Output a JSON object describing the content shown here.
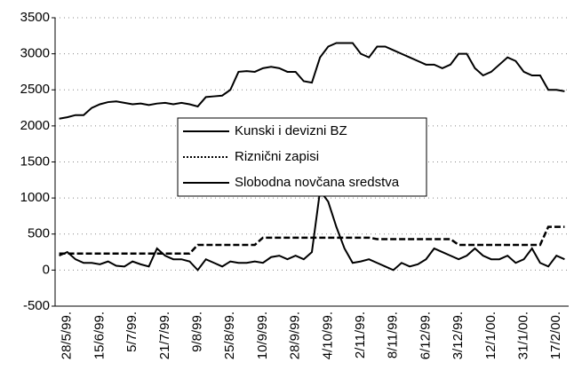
{
  "chart_data": {
    "type": "line",
    "categories": [
      null,
      "28/5/99.",
      null,
      null,
      null,
      "15/6/99.",
      null,
      null,
      null,
      "5/7/99.",
      null,
      null,
      null,
      "21/7/99.",
      null,
      null,
      null,
      "9/8/99.",
      null,
      null,
      null,
      "25/8/99.",
      null,
      null,
      null,
      "10/9/99.",
      null,
      null,
      null,
      "28/9/99.",
      null,
      null,
      null,
      "4/10/99.",
      null,
      null,
      null,
      "2/11/99.",
      null,
      null,
      null,
      "8/11/99.",
      null,
      null,
      null,
      "6/12/99.",
      null,
      null,
      null,
      "3/12/99.",
      null,
      null,
      null,
      "12/1/00.",
      null,
      null,
      null,
      "31/1/00.",
      null,
      null,
      null,
      "17/2/00.",
      null
    ],
    "series": [
      {
        "name": "Kunski i devizni BZ",
        "color": "#000000",
        "style": "solid",
        "values": [
          2100,
          2120,
          2150,
          2150,
          2250,
          2300,
          2330,
          2340,
          2320,
          2300,
          2310,
          2290,
          2310,
          2320,
          2300,
          2320,
          2300,
          2270,
          2400,
          2410,
          2420,
          2500,
          2750,
          2760,
          2750,
          2800,
          2820,
          2800,
          2750,
          2750,
          2620,
          2600,
          2950,
          3100,
          3150,
          3150,
          3150,
          3000,
          2950,
          3100,
          3100,
          3050,
          3000,
          2950,
          2900,
          2850,
          2850,
          2800,
          2850,
          3000,
          3000,
          2800,
          2700,
          2750,
          2850,
          2950,
          2900,
          2750,
          2700,
          2700,
          2500,
          2500,
          2480
        ]
      },
      {
        "name": "Riznični zapisi",
        "color": "#000000",
        "style": "dashed",
        "values": [
          230,
          230,
          230,
          230,
          230,
          230,
          230,
          230,
          230,
          230,
          230,
          230,
          230,
          230,
          230,
          230,
          230,
          350,
          350,
          350,
          350,
          350,
          350,
          350,
          350,
          450,
          450,
          450,
          450,
          450,
          450,
          450,
          450,
          450,
          450,
          450,
          450,
          450,
          450,
          430,
          430,
          430,
          430,
          430,
          430,
          430,
          430,
          430,
          430,
          350,
          350,
          350,
          350,
          350,
          350,
          350,
          350,
          350,
          350,
          350,
          600,
          600,
          600
        ]
      },
      {
        "name": "Slobodna novčana sredstva",
        "color": "#000000",
        "style": "solid",
        "values": [
          200,
          250,
          150,
          100,
          100,
          80,
          120,
          60,
          50,
          120,
          80,
          50,
          300,
          200,
          150,
          150,
          120,
          0,
          150,
          100,
          50,
          120,
          100,
          100,
          120,
          100,
          180,
          200,
          150,
          200,
          150,
          250,
          1100,
          950,
          600,
          300,
          100,
          120,
          150,
          100,
          50,
          0,
          100,
          50,
          80,
          150,
          300,
          250,
          200,
          150,
          200,
          300,
          200,
          150,
          150,
          200,
          100,
          150,
          300,
          100,
          50,
          200,
          150
        ]
      }
    ],
    "ylim": [
      -500,
      3500
    ],
    "yticks": [
      -500,
      0,
      500,
      1000,
      1500,
      2000,
      2500,
      3000,
      3500
    ],
    "grid": true
  }
}
